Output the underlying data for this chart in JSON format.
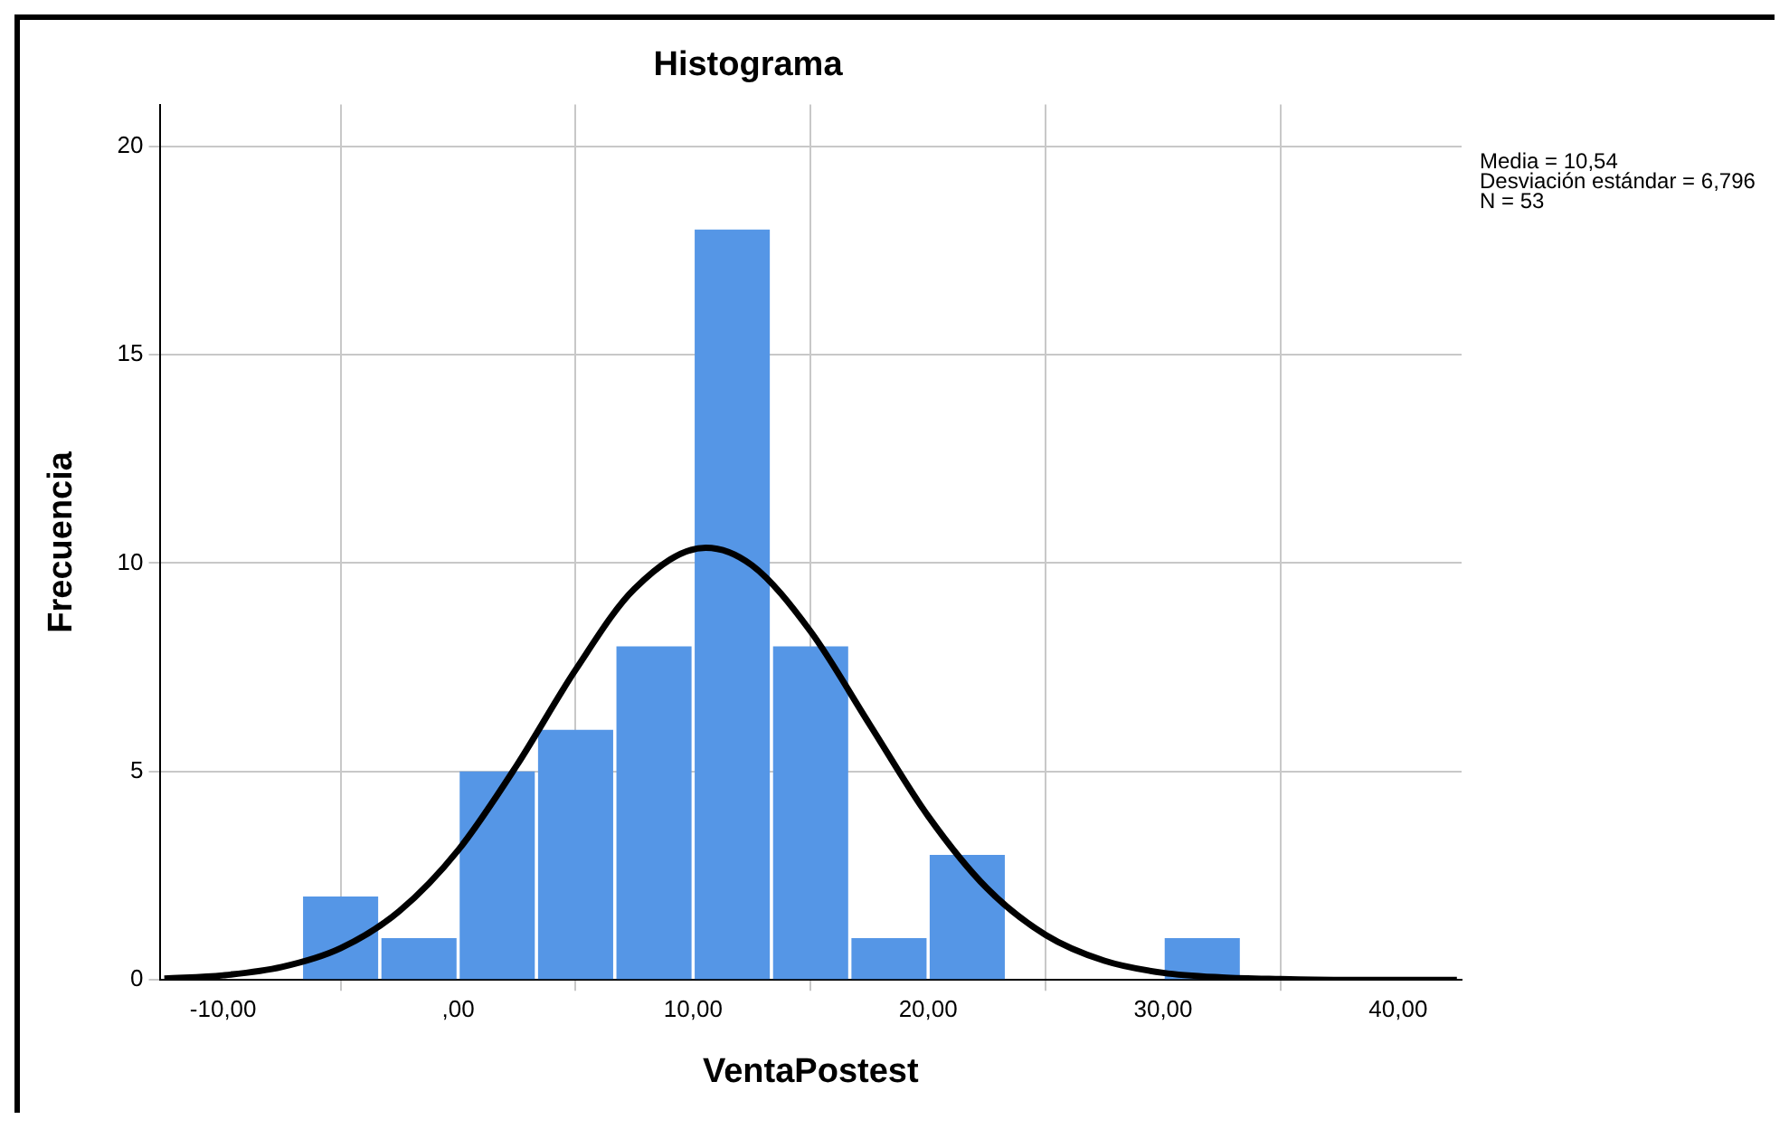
{
  "chart_data": {
    "type": "histogram",
    "title": "Histograma",
    "xlabel": "VentaPostest",
    "ylabel": "Frecuencia",
    "bins": [
      -6.67,
      -3.33,
      0,
      3.33,
      6.67,
      10,
      13.33,
      16.67,
      20,
      23.33,
      26.67,
      30,
      33.33
    ],
    "values": [
      2,
      1,
      5,
      6,
      8,
      18,
      8,
      1,
      3,
      0,
      0,
      1
    ],
    "color": "#5596e6",
    "series": [
      {
        "type": "line",
        "color": "#000000",
        "x": [
          -12.5,
          -10,
          -7.5,
          -5,
          -2.5,
          0,
          2.5,
          5,
          7.5,
          10.54,
          12.5,
          15,
          17.5,
          20,
          22.5,
          25,
          27.5,
          30,
          32.5,
          35,
          37.5,
          40,
          42.5
        ],
        "values": [
          0.03,
          0.11,
          0.31,
          0.76,
          1.65,
          3.11,
          5.15,
          7.44,
          9.38,
          10.37,
          9.95,
          8.36,
          6.14,
          3.93,
          2.2,
          1.08,
          0.46,
          0.17,
          0.06,
          0.02,
          0,
          0,
          0
        ]
      }
    ],
    "xlim": [
      -12.7,
      42.7
    ],
    "xticks": [
      {
        "value": -10,
        "label": "-10,00"
      },
      {
        "value": 0,
        "label": ",00"
      },
      {
        "value": 10,
        "label": "10,00"
      },
      {
        "value": 20,
        "label": "20,00"
      },
      {
        "value": 30,
        "label": "30,00"
      },
      {
        "value": 40,
        "label": "40,00"
      }
    ],
    "ylim": [
      0,
      21
    ],
    "yticks": [
      0,
      5,
      10,
      15,
      20
    ],
    "grid": true,
    "legend": false,
    "marker": "none",
    "line_style": "solid",
    "annotations": [
      "Media = 10,54",
      "Desviación estándar = 6,796",
      "N = 53"
    ]
  }
}
